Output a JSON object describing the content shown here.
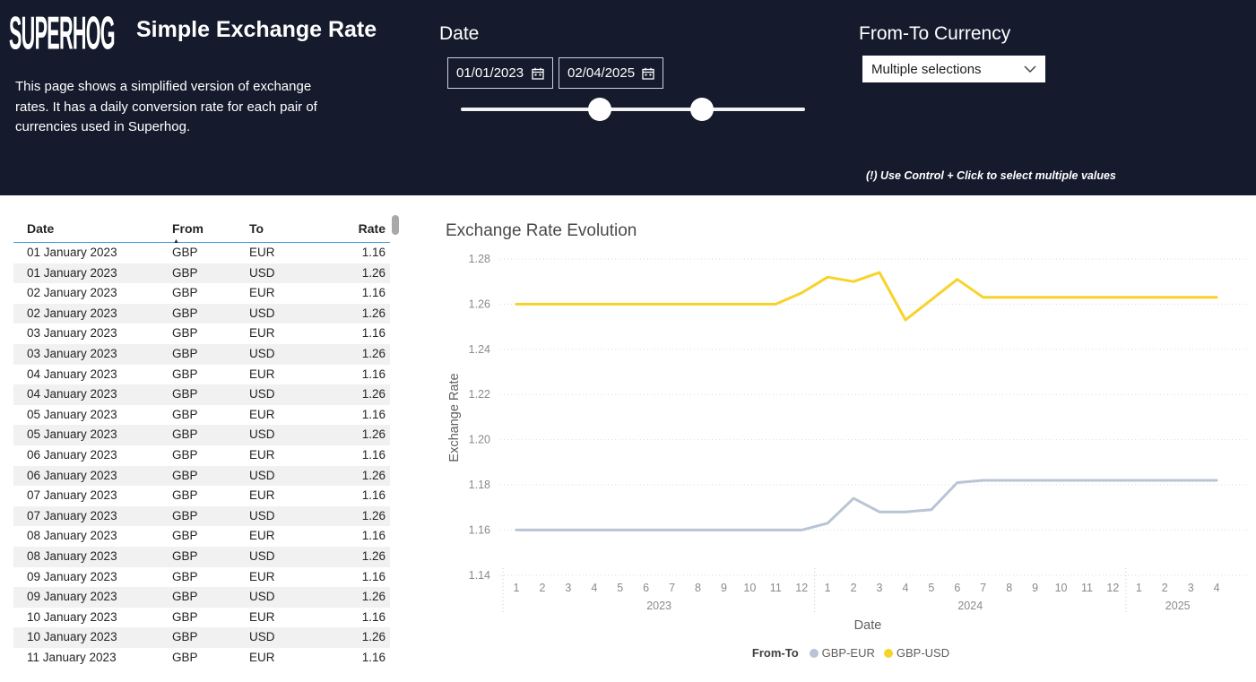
{
  "header": {
    "logo": "SUPERHOG",
    "title": "Simple Exchange Rate",
    "description": "This page shows a simplified version of exchange rates. It has a daily conversion rate for each pair of currencies used in Superhog.",
    "date_slicer": {
      "label": "Date",
      "start": "01/01/2023",
      "end": "02/04/2025"
    },
    "currency_slicer": {
      "label": "From-To Currency",
      "value": "Multiple selections"
    },
    "hint": "(!) Use Control + Click to select multiple values"
  },
  "table": {
    "columns": [
      "Date",
      "From",
      "To",
      "Rate"
    ],
    "sort_column": "From",
    "sort_indicator": "▲",
    "rows": [
      [
        "01 January 2023",
        "GBP",
        "EUR",
        "1.16"
      ],
      [
        "01 January 2023",
        "GBP",
        "USD",
        "1.26"
      ],
      [
        "02 January 2023",
        "GBP",
        "EUR",
        "1.16"
      ],
      [
        "02 January 2023",
        "GBP",
        "USD",
        "1.26"
      ],
      [
        "03 January 2023",
        "GBP",
        "EUR",
        "1.16"
      ],
      [
        "03 January 2023",
        "GBP",
        "USD",
        "1.26"
      ],
      [
        "04 January 2023",
        "GBP",
        "EUR",
        "1.16"
      ],
      [
        "04 January 2023",
        "GBP",
        "USD",
        "1.26"
      ],
      [
        "05 January 2023",
        "GBP",
        "EUR",
        "1.16"
      ],
      [
        "05 January 2023",
        "GBP",
        "USD",
        "1.26"
      ],
      [
        "06 January 2023",
        "GBP",
        "EUR",
        "1.16"
      ],
      [
        "06 January 2023",
        "GBP",
        "USD",
        "1.26"
      ],
      [
        "07 January 2023",
        "GBP",
        "EUR",
        "1.16"
      ],
      [
        "07 January 2023",
        "GBP",
        "USD",
        "1.26"
      ],
      [
        "08 January 2023",
        "GBP",
        "EUR",
        "1.16"
      ],
      [
        "08 January 2023",
        "GBP",
        "USD",
        "1.26"
      ],
      [
        "09 January 2023",
        "GBP",
        "EUR",
        "1.16"
      ],
      [
        "09 January 2023",
        "GBP",
        "USD",
        "1.26"
      ],
      [
        "10 January 2023",
        "GBP",
        "EUR",
        "1.16"
      ],
      [
        "10 January 2023",
        "GBP",
        "USD",
        "1.26"
      ],
      [
        "11 January 2023",
        "GBP",
        "EUR",
        "1.16"
      ]
    ]
  },
  "chart_data": {
    "type": "line",
    "title": "Exchange Rate Evolution",
    "xlabel": "Date",
    "ylabel": "Exchange Rate",
    "ylim": [
      1.14,
      1.28
    ],
    "ytick_step": 0.02,
    "grid": "dotted horizontal",
    "legend_position": "bottom",
    "legend_title": "From-To",
    "x_months": [
      "1",
      "2",
      "3",
      "4",
      "5",
      "6",
      "7",
      "8",
      "9",
      "10",
      "11",
      "12",
      "1",
      "2",
      "3",
      "4",
      "5",
      "6",
      "7",
      "8",
      "9",
      "10",
      "11",
      "12",
      "1",
      "2",
      "3",
      "4"
    ],
    "year_groups": [
      {
        "year": "2023",
        "start": 0,
        "count": 12
      },
      {
        "year": "2024",
        "start": 12,
        "count": 12
      },
      {
        "year": "2025",
        "start": 24,
        "count": 4
      }
    ],
    "series": [
      {
        "name": "GBP-EUR",
        "color": "#b9c5d5",
        "values": [
          1.16,
          1.16,
          1.16,
          1.16,
          1.16,
          1.16,
          1.16,
          1.16,
          1.16,
          1.16,
          1.16,
          1.16,
          1.163,
          1.174,
          1.168,
          1.168,
          1.169,
          1.181,
          1.182,
          1.182,
          1.182,
          1.182,
          1.182,
          1.182,
          1.182,
          1.182,
          1.182,
          1.182
        ]
      },
      {
        "name": "GBP-USD",
        "color": "#f7d32a",
        "values": [
          1.26,
          1.26,
          1.26,
          1.26,
          1.26,
          1.26,
          1.26,
          1.26,
          1.26,
          1.26,
          1.26,
          1.265,
          1.272,
          1.27,
          1.274,
          1.253,
          1.262,
          1.271,
          1.263,
          1.263,
          1.263,
          1.263,
          1.263,
          1.263,
          1.263,
          1.263,
          1.263,
          1.263
        ]
      }
    ],
    "colors": {
      "gbp_eur": "#b9c5d5",
      "gbp_usd": "#f7d32a",
      "gridline": "#d9d9d9",
      "tick_text": "#8a8a8a",
      "axis_title": "#605e5c"
    }
  }
}
